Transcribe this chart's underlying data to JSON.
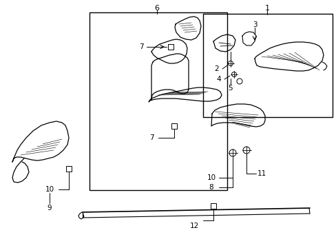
{
  "background_color": "#ffffff",
  "line_color": "#000000",
  "figsize": [
    4.89,
    3.6
  ],
  "dpi": 100
}
